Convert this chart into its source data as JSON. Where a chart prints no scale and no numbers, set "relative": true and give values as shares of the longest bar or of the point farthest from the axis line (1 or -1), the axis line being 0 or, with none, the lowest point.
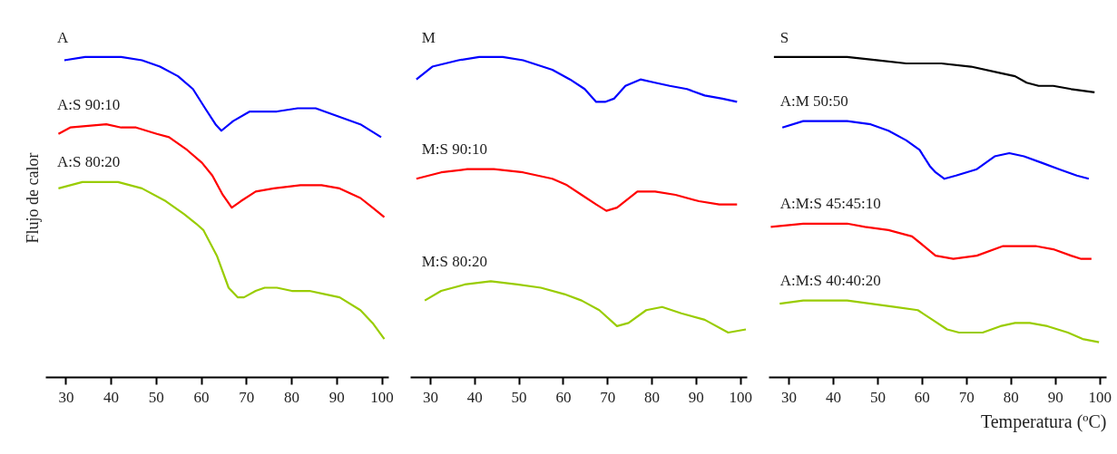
{
  "chart_data": [
    {
      "type": "line",
      "relative": true,
      "ylabel": "Flujo de calor",
      "xlim": [
        25.5,
        101.5
      ],
      "xticks": [
        30,
        40,
        50,
        60,
        70,
        80,
        90,
        100
      ],
      "tick_labels": "x",
      "grid": false,
      "legend": false,
      "marker": "none",
      "line_style": "solid",
      "series": [
        {
          "name": "A",
          "color": "#0000ff",
          "x": [
            29.6,
            34.2,
            42.2,
            46.8,
            50.8,
            54.8,
            58.1,
            60.8,
            63.1,
            64.4,
            67.0,
            70.7,
            76.7,
            81.3,
            85.3,
            89.2,
            95.2,
            99.8
          ],
          "values": [
            0.99,
            1.0,
            1.0,
            0.99,
            0.97,
            0.94,
            0.9,
            0.84,
            0.79,
            0.77,
            0.8,
            0.83,
            0.83,
            0.84,
            0.84,
            0.82,
            0.79,
            0.75
          ]
        },
        {
          "name": "A:S 90:10",
          "color": "#ff0000",
          "x": [
            28.3,
            30.9,
            38.9,
            42.2,
            45.5,
            50.1,
            52.8,
            56.8,
            60.1,
            62.4,
            64.7,
            66.7,
            68.7,
            72.0,
            76.0,
            81.9,
            86.6,
            90.6,
            95.2,
            97.9,
            100.5
          ],
          "values": [
            0.76,
            0.78,
            0.79,
            0.78,
            0.78,
            0.76,
            0.75,
            0.71,
            0.67,
            0.63,
            0.57,
            0.53,
            0.55,
            0.58,
            0.59,
            0.6,
            0.6,
            0.59,
            0.56,
            0.53,
            0.5
          ]
        },
        {
          "name": "A:S 80:20",
          "color": "#99cc00",
          "x": [
            28.3,
            33.6,
            37.6,
            41.5,
            46.8,
            52.1,
            56.1,
            58.8,
            60.4,
            63.4,
            66.0,
            68.0,
            69.4,
            72.0,
            74.0,
            76.7,
            80.0,
            83.9,
            87.3,
            90.6,
            95.2,
            97.9,
            100.5
          ],
          "values": [
            0.59,
            0.61,
            0.61,
            0.61,
            0.59,
            0.55,
            0.51,
            0.48,
            0.46,
            0.38,
            0.28,
            0.25,
            0.25,
            0.27,
            0.28,
            0.28,
            0.27,
            0.27,
            0.26,
            0.25,
            0.21,
            0.17,
            0.12
          ]
        }
      ]
    },
    {
      "type": "line",
      "relative": true,
      "xlim": [
        25.5,
        101.5
      ],
      "xticks": [
        30,
        40,
        50,
        60,
        70,
        80,
        90,
        100
      ],
      "tick_labels": "x",
      "grid": false,
      "legend": false,
      "marker": "none",
      "line_style": "solid",
      "series": [
        {
          "name": "M",
          "color": "#0000ff",
          "x": [
            26.8,
            30.4,
            36.3,
            41.0,
            46.3,
            50.9,
            57.5,
            61.5,
            64.8,
            67.4,
            69.4,
            71.4,
            74.0,
            77.4,
            80.7,
            84.0,
            87.9,
            91.9,
            95.9,
            99.2
          ],
          "values": [
            0.93,
            0.97,
            0.99,
            1.0,
            1.0,
            0.99,
            0.96,
            0.93,
            0.9,
            0.86,
            0.86,
            0.87,
            0.91,
            0.93,
            0.92,
            0.91,
            0.9,
            0.88,
            0.87,
            0.86
          ]
        },
        {
          "name": "M:S 90:10",
          "color": "#ff0000",
          "x": [
            26.8,
            32.4,
            38.3,
            44.3,
            50.9,
            57.5,
            60.8,
            64.1,
            67.4,
            69.7,
            72.1,
            76.7,
            80.7,
            85.3,
            90.6,
            95.2,
            99.2
          ],
          "values": [
            0.62,
            0.64,
            0.65,
            0.65,
            0.64,
            0.62,
            0.6,
            0.57,
            0.54,
            0.52,
            0.53,
            0.58,
            0.58,
            0.57,
            0.55,
            0.54,
            0.54
          ]
        },
        {
          "name": "M:S 80:20",
          "color": "#99cc00",
          "x": [
            28.7,
            32.4,
            37.7,
            43.6,
            49.6,
            54.9,
            60.2,
            64.1,
            68.1,
            72.1,
            74.7,
            78.7,
            82.3,
            86.6,
            91.9,
            97.2,
            101.2
          ],
          "values": [
            0.24,
            0.27,
            0.29,
            0.3,
            0.29,
            0.28,
            0.26,
            0.24,
            0.21,
            0.16,
            0.17,
            0.21,
            0.22,
            0.2,
            0.18,
            0.14,
            0.15
          ]
        }
      ]
    },
    {
      "type": "line",
      "relative": true,
      "xlabel": "Temperatura (ºC)",
      "xlim": [
        25.5,
        101.5
      ],
      "xticks": [
        30,
        40,
        50,
        60,
        70,
        80,
        90,
        100
      ],
      "tick_labels": "x",
      "grid": false,
      "legend": false,
      "marker": "none",
      "line_style": "solid",
      "series": [
        {
          "name": "S",
          "color": "#000000",
          "x": [
            26.6,
            36.5,
            43.1,
            49.7,
            56.4,
            64.3,
            71.0,
            77.6,
            80.9,
            83.5,
            86.2,
            89.5,
            93.5,
            98.8
          ],
          "values": [
            1.0,
            1.0,
            1.0,
            0.99,
            0.98,
            0.98,
            0.97,
            0.95,
            0.94,
            0.92,
            0.91,
            0.91,
            0.9,
            0.89
          ]
        },
        {
          "name": "A:M 50:50",
          "color": "#0000ff",
          "x": [
            28.5,
            33.2,
            38.5,
            43.1,
            48.4,
            52.4,
            56.4,
            59.4,
            61.7,
            63.0,
            65.0,
            67.6,
            72.3,
            76.3,
            79.6,
            82.9,
            86.9,
            90.8,
            94.8,
            97.5
          ],
          "values": [
            0.78,
            0.8,
            0.8,
            0.8,
            0.79,
            0.77,
            0.74,
            0.71,
            0.66,
            0.64,
            0.62,
            0.63,
            0.65,
            0.69,
            0.7,
            0.69,
            0.67,
            0.65,
            0.63,
            0.62
          ]
        },
        {
          "name": "A:M:S 45:45:10",
          "color": "#ff0000",
          "x": [
            25.9,
            33.2,
            37.8,
            43.1,
            47.1,
            52.4,
            57.7,
            60.4,
            63.0,
            67.0,
            72.3,
            78.2,
            81.6,
            85.5,
            89.5,
            93.5,
            95.8,
            98.1
          ],
          "values": [
            0.47,
            0.48,
            0.48,
            0.48,
            0.47,
            0.46,
            0.44,
            0.41,
            0.38,
            0.37,
            0.38,
            0.41,
            0.41,
            0.41,
            0.4,
            0.38,
            0.37,
            0.37
          ]
        },
        {
          "name": "A:M:S 40:40:20",
          "color": "#99cc00",
          "x": [
            27.9,
            33.2,
            37.8,
            43.1,
            48.4,
            53.7,
            59.0,
            62.3,
            65.6,
            68.3,
            73.6,
            77.6,
            80.9,
            84.2,
            88.2,
            92.8,
            96.1,
            99.8
          ],
          "values": [
            0.23,
            0.24,
            0.24,
            0.24,
            0.23,
            0.22,
            0.21,
            0.18,
            0.15,
            0.14,
            0.14,
            0.16,
            0.17,
            0.17,
            0.16,
            0.14,
            0.12,
            0.11
          ]
        }
      ]
    }
  ]
}
